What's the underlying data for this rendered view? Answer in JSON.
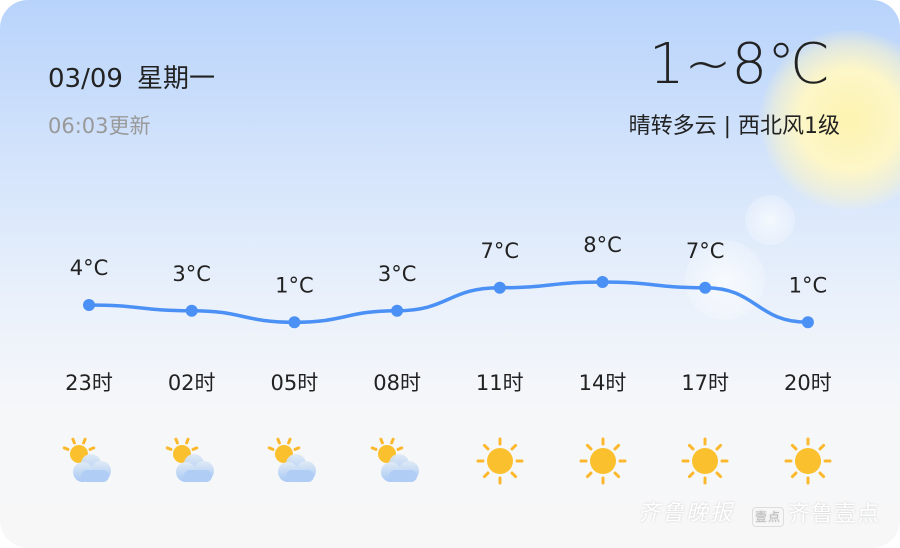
{
  "header": {
    "date": "03/09",
    "weekday": "星期一",
    "updated": "06:03更新",
    "temp_range": "1~8℃",
    "condition": "晴转多云",
    "wind": "西北风1级",
    "separator": "|"
  },
  "hourly": [
    {
      "time": "23时",
      "temp": 4,
      "label": "4°C",
      "icon": "partly-cloudy-icon"
    },
    {
      "time": "02时",
      "temp": 3,
      "label": "3°C",
      "icon": "partly-cloudy-icon"
    },
    {
      "time": "05时",
      "temp": 1,
      "label": "1°C",
      "icon": "partly-cloudy-icon"
    },
    {
      "time": "08时",
      "temp": 3,
      "label": "3°C",
      "icon": "partly-cloudy-icon"
    },
    {
      "time": "11时",
      "temp": 7,
      "label": "7°C",
      "icon": "sunny-icon"
    },
    {
      "time": "14时",
      "temp": 8,
      "label": "8°C",
      "icon": "sunny-icon"
    },
    {
      "time": "17时",
      "temp": 7,
      "label": "7°C",
      "icon": "sunny-icon"
    },
    {
      "time": "20时",
      "temp": 1,
      "label": "1°C",
      "icon": "sunny-icon"
    }
  ],
  "colors": {
    "line": "#4a90f5",
    "sun": "#fbc02d"
  },
  "watermark": {
    "brand1": "齐鲁晚报",
    "brand2": "齐鲁壹点",
    "badge": "壹点"
  }
}
